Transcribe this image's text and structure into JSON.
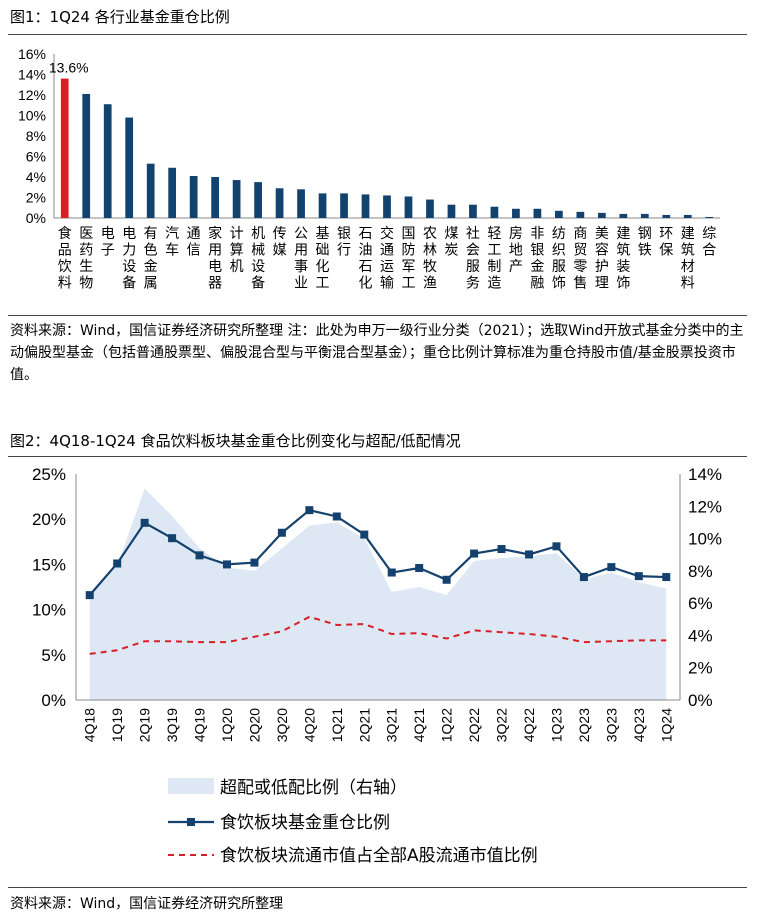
{
  "figure1": {
    "title": "图1：1Q24 各行业基金重仓比例",
    "source": "资料来源：Wind，国信证券经济研究所整理 注：此处为申万一级行业分类（2021）；选取Wind开放式基金分类中的主动偏股型基金（包括普通股票型、偏股混合型与平衡混合型基金）；重仓比例计算标准为重仓持股市值/基金股票投资市值。"
  },
  "figure2": {
    "title": "图2：4Q18-1Q24 食品饮料板块基金重仓比例变化与超配/低配情况",
    "source": "资料来源：Wind，国信证券经济研究所整理"
  },
  "colors": {
    "bar": "#12426e",
    "highlight": "#d81f26",
    "line": "#14416e",
    "dashed": "#d81f26",
    "area": "#dde8f4"
  },
  "chart_data": [
    {
      "type": "bar",
      "categories": [
        "食品饮料",
        "医药生物",
        "电子",
        "电力设备",
        "有色金属",
        "汽车",
        "通信",
        "家用电器",
        "计算机",
        "机械设备",
        "传媒",
        "公用事业",
        "基础化工",
        "银行",
        "石油石化",
        "交通运输",
        "国防军工",
        "农林牧渔",
        "煤炭",
        "社会服务",
        "轻工制造",
        "房地产",
        "非银金融",
        "纺织服饰",
        "商贸零售",
        "美容护理",
        "建筑装饰",
        "钢铁",
        "环保",
        "建筑材料",
        "综合"
      ],
      "values": [
        13.6,
        12.1,
        11.1,
        9.8,
        5.3,
        4.9,
        4.1,
        4.0,
        3.7,
        3.5,
        2.9,
        2.8,
        2.4,
        2.4,
        2.3,
        2.2,
        2.1,
        1.8,
        1.3,
        1.3,
        1.1,
        0.9,
        0.9,
        0.7,
        0.6,
        0.5,
        0.4,
        0.4,
        0.3,
        0.3,
        0.1
      ],
      "highlight_index": 0,
      "data_label": "13.6%",
      "ylim": [
        0,
        16
      ],
      "yticks": [
        "0%",
        "2%",
        "4%",
        "6%",
        "8%",
        "10%",
        "12%",
        "14%",
        "16%"
      ],
      "grid": false
    },
    {
      "type": "area",
      "x": [
        "4Q18",
        "1Q19",
        "2Q19",
        "3Q19",
        "4Q19",
        "1Q20",
        "2Q20",
        "3Q20",
        "4Q20",
        "1Q21",
        "2Q21",
        "3Q21",
        "4Q21",
        "1Q22",
        "2Q22",
        "3Q22",
        "4Q22",
        "1Q23",
        "2Q23",
        "3Q23",
        "4Q23",
        "1Q24"
      ],
      "series": [
        {
          "name": "超配或低配比例（右轴）",
          "type": "area",
          "axis": "right",
          "values": [
            6.5,
            8.3,
            13.1,
            11.4,
            9.4,
            8.2,
            8.0,
            9.4,
            10.8,
            11.0,
            10.0,
            6.7,
            7.0,
            6.5,
            8.6,
            8.8,
            8.9,
            9.1,
            7.5,
            7.9,
            7.3,
            6.9
          ]
        },
        {
          "name": "食饮板块基金重仓比例",
          "type": "line",
          "axis": "left",
          "values": [
            11.6,
            15.1,
            19.6,
            17.9,
            16.0,
            15.0,
            15.2,
            18.5,
            21.0,
            20.3,
            18.3,
            14.1,
            14.6,
            13.3,
            16.2,
            16.7,
            16.1,
            17.0,
            13.6,
            14.7,
            13.7,
            13.6
          ]
        },
        {
          "name": "食饮板块流通市值占全部A股流通市值比例",
          "type": "line",
          "style": "dashed",
          "axis": "left",
          "values": [
            5.1,
            5.5,
            6.5,
            6.5,
            6.4,
            6.4,
            7.0,
            7.6,
            9.2,
            8.3,
            8.4,
            7.3,
            7.4,
            6.8,
            7.7,
            7.5,
            7.3,
            7.0,
            6.4,
            6.5,
            6.6,
            6.6
          ]
        }
      ],
      "ylim_left": [
        0,
        25
      ],
      "yticks_left": [
        "0%",
        "5%",
        "10%",
        "15%",
        "20%",
        "25%"
      ],
      "ylim_right": [
        0,
        14
      ],
      "yticks_right": [
        "0%",
        "2%",
        "4%",
        "6%",
        "8%",
        "10%",
        "12%",
        "14%"
      ],
      "legend": "bottom-left"
    }
  ]
}
